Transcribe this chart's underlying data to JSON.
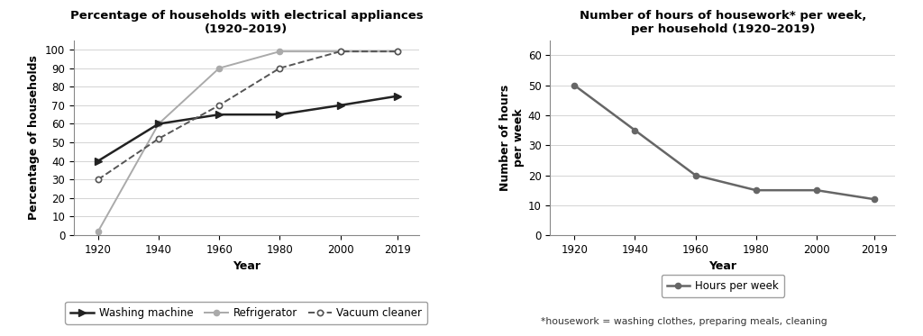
{
  "years": [
    1920,
    1940,
    1960,
    1980,
    2000,
    2019
  ],
  "washing_machine": [
    40,
    60,
    65,
    65,
    70,
    75
  ],
  "refrigerator": [
    2,
    60,
    90,
    99,
    99,
    99
  ],
  "vacuum_cleaner": [
    30,
    52,
    70,
    90,
    99,
    99
  ],
  "hours_per_week": [
    50,
    35,
    20,
    15,
    15,
    12
  ],
  "chart1_title_line1": "Percentage of households with electrical appliances",
  "chart1_title_line2": "(1920–2019)",
  "chart1_ylabel": "Percentage of households",
  "chart1_xlabel": "Year",
  "chart1_ylim": [
    0,
    105
  ],
  "chart1_yticks": [
    0,
    10,
    20,
    30,
    40,
    50,
    60,
    70,
    80,
    90,
    100
  ],
  "chart2_title_line1": "Number of hours of housework* per week,",
  "chart2_title_line2": "per household (1920–2019)",
  "chart2_ylabel": "Number of hours\nper week",
  "chart2_xlabel": "Year",
  "chart2_ylim": [
    0,
    65
  ],
  "chart2_yticks": [
    0,
    10,
    20,
    30,
    40,
    50,
    60
  ],
  "footnote": "*housework = washing clothes, preparing meals, cleaning",
  "washing_color": "#222222",
  "refrigerator_color": "#aaaaaa",
  "vacuum_color": "#555555",
  "hours_color": "#666666",
  "bg_color": "#ffffff",
  "grid_color": "#cccccc",
  "legend1_labels": [
    "Washing machine",
    "Refrigerator",
    "Vacuum cleaner"
  ],
  "legend2_label": "Hours per week",
  "title_fontsize": 9.5,
  "label_fontsize": 9,
  "tick_fontsize": 8.5,
  "legend_fontsize": 8.5
}
